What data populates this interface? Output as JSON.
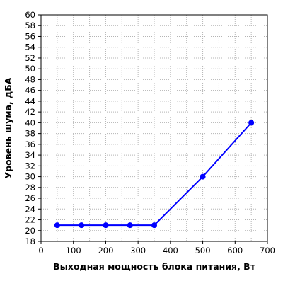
{
  "chart_data": {
    "type": "line",
    "xlabel": "Выходная мощность блока питания, Вт",
    "ylabel": "Уровень шума, дБА",
    "xlim": [
      0,
      700
    ],
    "ylim": [
      18,
      60
    ],
    "x_ticks": [
      0,
      100,
      200,
      300,
      400,
      500,
      600,
      700
    ],
    "y_ticks": [
      18,
      20,
      22,
      24,
      26,
      28,
      30,
      32,
      34,
      36,
      38,
      40,
      42,
      44,
      46,
      48,
      50,
      52,
      54,
      56,
      58,
      60
    ],
    "grid": true,
    "legend": "none",
    "series": [
      {
        "color": "#0000ff",
        "x": [
          50,
          125,
          200,
          275,
          350,
          500,
          650
        ],
        "y": [
          21,
          21,
          21,
          21,
          21,
          30,
          40
        ]
      }
    ]
  }
}
